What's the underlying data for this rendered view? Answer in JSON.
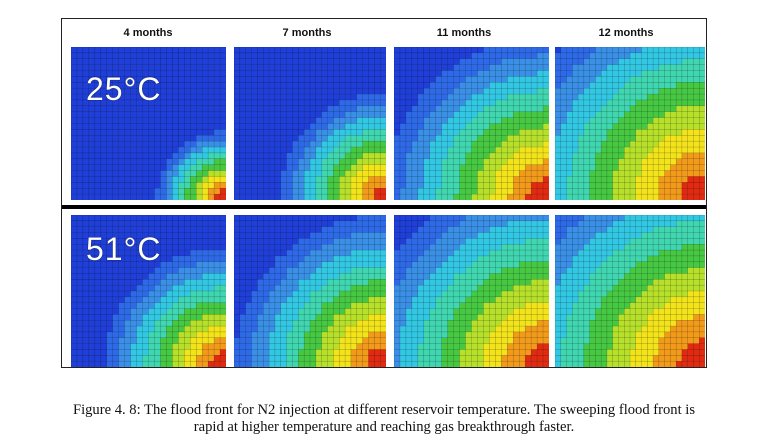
{
  "figure": {
    "column_labels": [
      "4 months",
      "7 months",
      "11 months",
      "12 months"
    ],
    "row_labels": [
      "25°C",
      "51°C"
    ],
    "panel_fronts": [
      [
        0.35,
        0.55,
        0.85,
        1.1
      ],
      [
        0.62,
        0.8,
        1.0,
        1.15
      ]
    ],
    "colors": {
      "background": "#1f3fd8",
      "blue2": "#2e6ae8",
      "blue3": "#3a8fe6",
      "cyan": "#32c7e3",
      "teal": "#3fd6b0",
      "green": "#46c842",
      "lime": "#b6e02a",
      "yellow": "#f2e31a",
      "orange": "#f29a1a",
      "red": "#e02a12"
    }
  },
  "caption": {
    "line1": "Figure 4. 8: The flood front for N2 injection at different reservoir temperature. The sweeping flood front is",
    "line2": "rapid at higher temperature and reaching gas breakthrough faster."
  }
}
